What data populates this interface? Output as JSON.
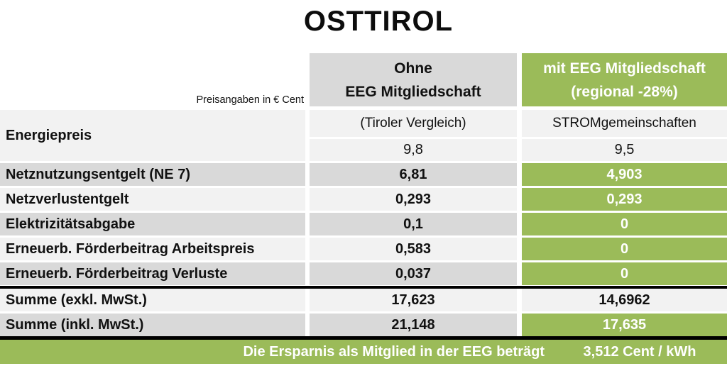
{
  "title": "OSTTIROL",
  "colors": {
    "green": "#9bbb59",
    "gray_dark": "#d9d9d9",
    "gray_light": "#f2f2f2",
    "text_white": "#ffffff"
  },
  "header": {
    "note": "Preisangaben in € Cent",
    "without": {
      "line1": "Ohne",
      "line2": "EEG Mitgliedschaft"
    },
    "with": {
      "line1": "mit EEG Mitgliedschaft",
      "line2": "(regional -28%)"
    }
  },
  "energiepreis": {
    "label": "Energiepreis",
    "source_without": "(Tiroler Vergleich)",
    "source_with": "STROMgemeinschaften",
    "value_without": "9,8",
    "value_with": "9,5"
  },
  "rows": [
    {
      "label": "Netznutzungsentgelt (NE 7)",
      "without": "6,81",
      "with": "4,903"
    },
    {
      "label": "Netzverlustentgelt",
      "without": "0,293",
      "with": "0,293"
    },
    {
      "label": "Elektrizitätsabgabe",
      "without": "0,1",
      "with": "0"
    },
    {
      "label": "Erneuerb. Förderbeitrag Arbeitspreis",
      "without": "0,583",
      "with": "0"
    },
    {
      "label": "Erneuerb. Förderbeitrag Verluste",
      "without": "0,037",
      "with": "0"
    }
  ],
  "summary": [
    {
      "label": "Summe (exkl. MwSt.)",
      "without": "17,623",
      "with": "14,6962"
    },
    {
      "label": "Summe (inkl. MwSt.)",
      "without": "21,148",
      "with": "17,635"
    }
  ],
  "footer": {
    "label": "Die Ersparnis als Mitglied in der EEG beträgt",
    "value": "3,512 Cent / kWh"
  }
}
